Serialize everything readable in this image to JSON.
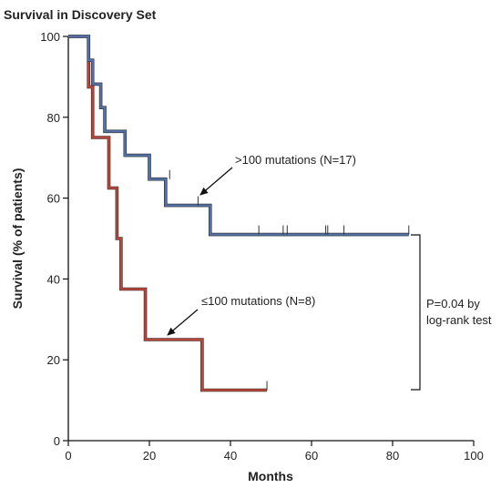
{
  "chart_data": {
    "type": "line",
    "title": "Survival in Discovery Set",
    "xlabel": "Months",
    "ylabel": "Survival (% of patients)",
    "xlim": [
      0,
      100
    ],
    "ylim": [
      0,
      100
    ],
    "x_ticks": [
      0,
      20,
      40,
      60,
      80,
      100
    ],
    "y_ticks": [
      0,
      20,
      40,
      60,
      80,
      100
    ],
    "grid": false,
    "step": true,
    "series": [
      {
        "name": ">100 mutations (N=17)",
        "color": "#5471a6",
        "x": [
          0,
          5,
          6,
          7,
          8,
          9,
          14,
          20,
          24,
          35,
          84
        ],
        "y": [
          100,
          94.1,
          88.2,
          88.2,
          82.4,
          76.5,
          70.6,
          64.7,
          58.2,
          51.0,
          51.0
        ],
        "censor_x": [
          25,
          32,
          47,
          53,
          54,
          63.5,
          64,
          68,
          84
        ],
        "censor_y": [
          64.7,
          58.2,
          51.0,
          51.0,
          51.0,
          51.0,
          51.0,
          51.0,
          51.0
        ]
      },
      {
        "name": "≤100 mutations (N=8)",
        "color": "#b8463a",
        "x": [
          0,
          5,
          6,
          10,
          12,
          13,
          19,
          33,
          49
        ],
        "y": [
          100,
          87.5,
          75.0,
          62.5,
          50.0,
          37.5,
          25.0,
          12.5,
          12.5
        ],
        "censor_x": [
          49
        ],
        "censor_y": [
          12.5
        ]
      }
    ],
    "annotations": [
      {
        "text": ">100 mutations (N=17)",
        "points_to": [
          32,
          58.2
        ]
      },
      {
        "text": "≤100 mutations (N=8)",
        "points_to": [
          25,
          25
        ]
      }
    ],
    "stat_text": [
      "P=0.04 by",
      "log-rank test"
    ],
    "bracket_y": [
      51.0,
      12.5
    ]
  }
}
